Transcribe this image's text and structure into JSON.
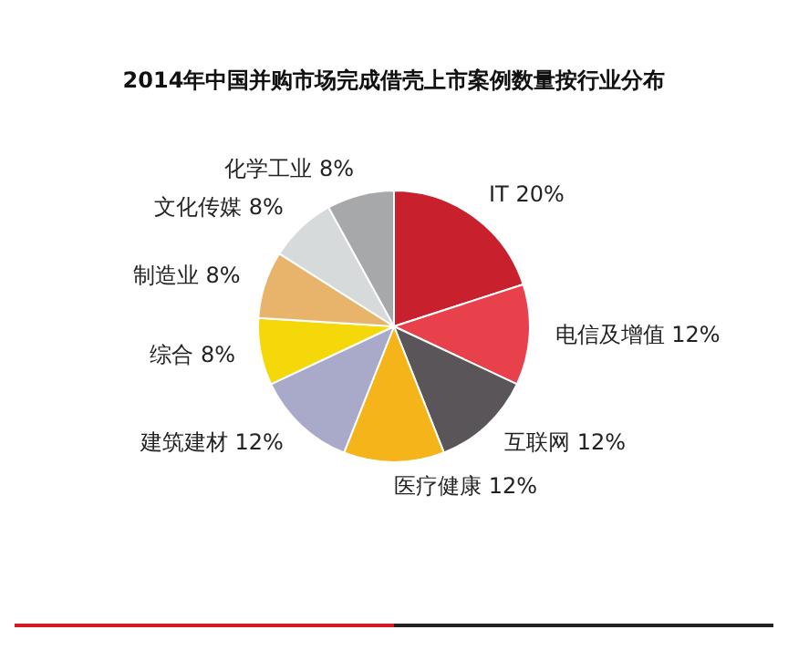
{
  "chart_data": {
    "type": "pie",
    "title": "2014年中国并购市场完成借壳上市案例数量按行业分布",
    "categories": [
      "IT",
      "电信及增值",
      "互联网",
      "医疗健康",
      "建筑建材",
      "综合",
      "制造业",
      "文化传媒",
      "化学工业"
    ],
    "values": [
      20,
      12,
      12,
      12,
      12,
      8,
      8,
      8,
      8
    ],
    "value_labels": [
      "20%",
      "12%",
      "12%",
      "12%",
      "12%",
      "8%",
      "8%",
      "8%",
      "8%"
    ],
    "colors": [
      "#c8202d",
      "#e8414b",
      "#5a5558",
      "#f4b41a",
      "#a9a9c9",
      "#f5d80a",
      "#e8b46c",
      "#d6dadb",
      "#a6a8aa"
    ],
    "legend": false
  }
}
